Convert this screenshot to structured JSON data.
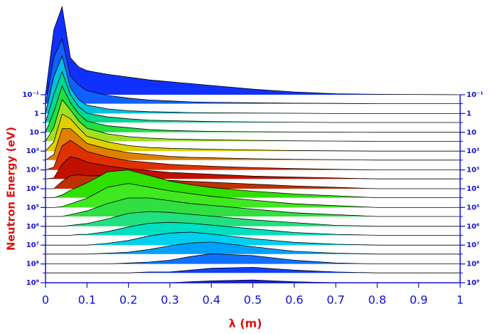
{
  "chart_data": {
    "type": "ridgeline",
    "xlabel": "λ (m)",
    "ylabel": "Neutron Energy (eV)",
    "xlim": [
      0,
      1
    ],
    "xticks": [
      0,
      0.1,
      0.2,
      0.3,
      0.4,
      0.5,
      0.6,
      0.7,
      0.8,
      0.9,
      1
    ],
    "ylim": [
      0.1,
      1000000000
    ],
    "ylog": true,
    "yinverted": true,
    "yticks": [
      {
        "value": 0.1,
        "label": "10⁻¹"
      },
      1,
      10,
      {
        "value": 100,
        "label": "10²"
      },
      {
        "value": 1000,
        "label": "10³"
      },
      {
        "value": 10000,
        "label": "10⁴"
      },
      {
        "value": 100000,
        "label": "10⁵"
      },
      {
        "value": 1000000,
        "label": "10⁶"
      },
      {
        "value": 10000000,
        "label": "10⁷"
      },
      {
        "value": 100000000,
        "label": "10⁸"
      },
      {
        "value": 1000000000,
        "label": "10⁹"
      }
    ],
    "x": [
      0,
      0.02,
      0.04,
      0.06,
      0.08,
      0.1,
      0.15,
      0.2,
      0.25,
      0.3,
      0.35,
      0.4,
      0.5,
      0.6,
      0.7,
      0.8,
      1
    ],
    "series": [
      {
        "energy": 0.1,
        "color": "#1030ff",
        "values": [
          0,
          70,
          95,
          40,
          30,
          26,
          22,
          19,
          16,
          14,
          12,
          10,
          6,
          3,
          1,
          0.5,
          0
        ]
      },
      {
        "energy": 0.3,
        "color": "#1060ff",
        "values": [
          0,
          50,
          70,
          30,
          20,
          14,
          9,
          6,
          4,
          3,
          2,
          1.5,
          1,
          0.5,
          0.3,
          0,
          0
        ]
      },
      {
        "energy": 1,
        "color": "#00c0e0",
        "values": [
          0,
          40,
          62,
          28,
          15,
          9,
          5,
          3,
          2,
          1.5,
          1,
          0.8,
          0.5,
          0.3,
          0,
          0,
          0
        ]
      },
      {
        "energy": 3,
        "color": "#00d890",
        "values": [
          0,
          30,
          55,
          30,
          17,
          10,
          6,
          4,
          2.5,
          2,
          1.5,
          1,
          0.6,
          0.3,
          0,
          0,
          0
        ]
      },
      {
        "energy": 10,
        "color": "#20e040",
        "values": [
          0,
          22,
          50,
          32,
          20,
          12,
          7,
          5,
          3,
          2,
          1.5,
          1,
          0.6,
          0.3,
          0.1,
          0,
          0
        ]
      },
      {
        "energy": 30,
        "color": "#a0e020",
        "values": [
          0,
          15,
          45,
          34,
          22,
          14,
          8,
          5,
          3.5,
          2.5,
          2,
          1.5,
          1,
          0.5,
          0.2,
          0,
          0
        ]
      },
      {
        "energy": 100,
        "color": "#e0d000",
        "values": [
          0,
          10,
          40,
          35,
          25,
          16,
          10,
          6,
          4,
          3,
          2.5,
          2,
          1.2,
          0.6,
          0.3,
          0,
          0
        ]
      },
      {
        "energy": 300,
        "color": "#e08000",
        "values": [
          0,
          6,
          34,
          34,
          26,
          18,
          12,
          8,
          6,
          4,
          3,
          2.5,
          1.5,
          0.8,
          0.4,
          0,
          0
        ]
      },
      {
        "energy": 1000,
        "color": "#e03000",
        "values": [
          0,
          3,
          26,
          32,
          26,
          20,
          14,
          10,
          8,
          6,
          5,
          4,
          2.5,
          1.5,
          0.6,
          0,
          0
        ]
      },
      {
        "energy": 3000,
        "color": "#c01000",
        "values": [
          0,
          1,
          16,
          24,
          22,
          18,
          14,
          11,
          9,
          7,
          6,
          5,
          3,
          2,
          1,
          0,
          0
        ]
      },
      {
        "energy": 10000,
        "color": "#c03000",
        "values": [
          0,
          0,
          8,
          14,
          15,
          14,
          14,
          13,
          11,
          9,
          8,
          7,
          5,
          3,
          1.5,
          0,
          0
        ]
      },
      {
        "energy": 30000,
        "color": "#30e000",
        "values": [
          0,
          0,
          3,
          8,
          12,
          16,
          28,
          30,
          24,
          18,
          14,
          11,
          7,
          4,
          2,
          0,
          0
        ]
      },
      {
        "energy": 100000,
        "color": "#40e820",
        "values": [
          0,
          0,
          1,
          4,
          7,
          10,
          22,
          26,
          22,
          18,
          15,
          12,
          8,
          4,
          2,
          0,
          0
        ]
      },
      {
        "energy": 300000,
        "color": "#30e040",
        "values": [
          0,
          0,
          0,
          2,
          4,
          6,
          14,
          20,
          20,
          17,
          14,
          12,
          8,
          4,
          2,
          0,
          0
        ]
      },
      {
        "energy": 1000000,
        "color": "#20e080",
        "values": [
          0,
          0,
          0,
          1,
          2,
          3,
          8,
          14,
          16,
          15,
          13,
          11,
          7,
          4,
          1,
          0,
          0
        ]
      },
      {
        "energy": 3000000,
        "color": "#00e0c0",
        "values": [
          0,
          0,
          0,
          0,
          1,
          1,
          4,
          9,
          13,
          14,
          13,
          11,
          7,
          3,
          1,
          0,
          0
        ]
      },
      {
        "energy": 10000000,
        "color": "#00d0f0",
        "values": [
          0,
          0,
          0,
          0,
          0,
          0,
          2,
          5,
          10,
          13,
          14,
          12,
          7,
          3,
          1,
          0,
          0
        ]
      },
      {
        "energy": 30000000,
        "color": "#00a0ff",
        "values": [
          0,
          0,
          0,
          0,
          0,
          0,
          1,
          2,
          5,
          9,
          12,
          13,
          8,
          3,
          1,
          0,
          0
        ]
      },
      {
        "energy": 100000000,
        "color": "#1070ff",
        "values": [
          0,
          0,
          0,
          0,
          0,
          0,
          0,
          1,
          2,
          4,
          8,
          11,
          9,
          4,
          1,
          0,
          0
        ]
      },
      {
        "energy": 300000000,
        "color": "#1040ff",
        "values": [
          0,
          0,
          0,
          0,
          0,
          0,
          0,
          0,
          1,
          1,
          3,
          5,
          6,
          3,
          1,
          0,
          0
        ]
      },
      {
        "energy": 1000000000,
        "color": "#1020ff",
        "values": [
          0,
          0,
          0,
          0,
          0,
          0,
          0,
          0,
          0,
          0,
          1,
          2,
          3,
          1,
          0,
          0,
          0
        ]
      }
    ]
  }
}
